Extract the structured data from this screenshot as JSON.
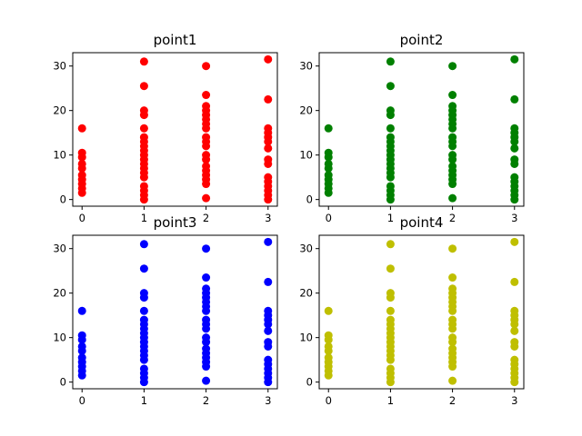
{
  "chart_data": [
    {
      "type": "scatter",
      "title": "point1",
      "color": "#ff0000",
      "xlabel": "",
      "ylabel": "",
      "xlim": [
        -0.15,
        3.15
      ],
      "ylim": [
        -1.5,
        33
      ],
      "x_ticks": [
        "0",
        "1",
        "2",
        "3"
      ],
      "y_ticks": [
        "0",
        "10",
        "20",
        "30"
      ],
      "grid": false,
      "points": [
        {
          "x": 0,
          "y": 1.5
        },
        {
          "x": 0,
          "y": 2.5
        },
        {
          "x": 0,
          "y": 3.5
        },
        {
          "x": 0,
          "y": 4.5
        },
        {
          "x": 0,
          "y": 5.5
        },
        {
          "x": 0,
          "y": 7
        },
        {
          "x": 0,
          "y": 8
        },
        {
          "x": 0,
          "y": 9.5
        },
        {
          "x": 0,
          "y": 10.5
        },
        {
          "x": 0,
          "y": 16
        },
        {
          "x": 1,
          "y": 0
        },
        {
          "x": 1,
          "y": 1
        },
        {
          "x": 1,
          "y": 2
        },
        {
          "x": 1,
          "y": 3
        },
        {
          "x": 1,
          "y": 5
        },
        {
          "x": 1,
          "y": 6
        },
        {
          "x": 1,
          "y": 7
        },
        {
          "x": 1,
          "y": 8
        },
        {
          "x": 1,
          "y": 9
        },
        {
          "x": 1,
          "y": 10
        },
        {
          "x": 1,
          "y": 11
        },
        {
          "x": 1,
          "y": 12
        },
        {
          "x": 1,
          "y": 13
        },
        {
          "x": 1,
          "y": 14
        },
        {
          "x": 1,
          "y": 16
        },
        {
          "x": 1,
          "y": 19
        },
        {
          "x": 1,
          "y": 20
        },
        {
          "x": 1,
          "y": 25.5
        },
        {
          "x": 1,
          "y": 31
        },
        {
          "x": 2,
          "y": 0.3
        },
        {
          "x": 2,
          "y": 3.5
        },
        {
          "x": 2,
          "y": 4.5
        },
        {
          "x": 2,
          "y": 5.5
        },
        {
          "x": 2,
          "y": 6.5
        },
        {
          "x": 2,
          "y": 7.5
        },
        {
          "x": 2,
          "y": 9
        },
        {
          "x": 2,
          "y": 10
        },
        {
          "x": 2,
          "y": 12
        },
        {
          "x": 2,
          "y": 13
        },
        {
          "x": 2,
          "y": 14
        },
        {
          "x": 2,
          "y": 16
        },
        {
          "x": 2,
          "y": 17
        },
        {
          "x": 2,
          "y": 18
        },
        {
          "x": 2,
          "y": 19
        },
        {
          "x": 2,
          "y": 20
        },
        {
          "x": 2,
          "y": 21
        },
        {
          "x": 2,
          "y": 23.5
        },
        {
          "x": 2,
          "y": 30
        },
        {
          "x": 3,
          "y": 0
        },
        {
          "x": 3,
          "y": 1
        },
        {
          "x": 3,
          "y": 2
        },
        {
          "x": 3,
          "y": 3
        },
        {
          "x": 3,
          "y": 4
        },
        {
          "x": 3,
          "y": 5
        },
        {
          "x": 3,
          "y": 8
        },
        {
          "x": 3,
          "y": 9
        },
        {
          "x": 3,
          "y": 11.5
        },
        {
          "x": 3,
          "y": 13
        },
        {
          "x": 3,
          "y": 14
        },
        {
          "x": 3,
          "y": 15
        },
        {
          "x": 3,
          "y": 16
        },
        {
          "x": 3,
          "y": 22.5
        },
        {
          "x": 3,
          "y": 31.5
        }
      ]
    },
    {
      "type": "scatter",
      "title": "point2",
      "color": "#008000",
      "xlabel": "",
      "ylabel": "",
      "xlim": [
        -0.15,
        3.15
      ],
      "ylim": [
        -1.5,
        33
      ],
      "x_ticks": [
        "0",
        "1",
        "2",
        "3"
      ],
      "y_ticks": [
        "0",
        "10",
        "20",
        "30"
      ],
      "grid": false,
      "points": [
        {
          "x": 0,
          "y": 1.5
        },
        {
          "x": 0,
          "y": 2.5
        },
        {
          "x": 0,
          "y": 3.5
        },
        {
          "x": 0,
          "y": 4.5
        },
        {
          "x": 0,
          "y": 5.5
        },
        {
          "x": 0,
          "y": 7
        },
        {
          "x": 0,
          "y": 8
        },
        {
          "x": 0,
          "y": 9.5
        },
        {
          "x": 0,
          "y": 10.5
        },
        {
          "x": 0,
          "y": 16
        },
        {
          "x": 1,
          "y": 0
        },
        {
          "x": 1,
          "y": 1
        },
        {
          "x": 1,
          "y": 2
        },
        {
          "x": 1,
          "y": 3
        },
        {
          "x": 1,
          "y": 5
        },
        {
          "x": 1,
          "y": 6
        },
        {
          "x": 1,
          "y": 7
        },
        {
          "x": 1,
          "y": 8
        },
        {
          "x": 1,
          "y": 9
        },
        {
          "x": 1,
          "y": 10
        },
        {
          "x": 1,
          "y": 11
        },
        {
          "x": 1,
          "y": 12
        },
        {
          "x": 1,
          "y": 13
        },
        {
          "x": 1,
          "y": 14
        },
        {
          "x": 1,
          "y": 16
        },
        {
          "x": 1,
          "y": 19
        },
        {
          "x": 1,
          "y": 20
        },
        {
          "x": 1,
          "y": 25.5
        },
        {
          "x": 1,
          "y": 31
        },
        {
          "x": 2,
          "y": 0.3
        },
        {
          "x": 2,
          "y": 3.5
        },
        {
          "x": 2,
          "y": 4.5
        },
        {
          "x": 2,
          "y": 5.5
        },
        {
          "x": 2,
          "y": 6.5
        },
        {
          "x": 2,
          "y": 7.5
        },
        {
          "x": 2,
          "y": 9
        },
        {
          "x": 2,
          "y": 10
        },
        {
          "x": 2,
          "y": 12
        },
        {
          "x": 2,
          "y": 13
        },
        {
          "x": 2,
          "y": 14
        },
        {
          "x": 2,
          "y": 16
        },
        {
          "x": 2,
          "y": 17
        },
        {
          "x": 2,
          "y": 18
        },
        {
          "x": 2,
          "y": 19
        },
        {
          "x": 2,
          "y": 20
        },
        {
          "x": 2,
          "y": 21
        },
        {
          "x": 2,
          "y": 23.5
        },
        {
          "x": 2,
          "y": 30
        },
        {
          "x": 3,
          "y": 0
        },
        {
          "x": 3,
          "y": 1
        },
        {
          "x": 3,
          "y": 2
        },
        {
          "x": 3,
          "y": 3
        },
        {
          "x": 3,
          "y": 4
        },
        {
          "x": 3,
          "y": 5
        },
        {
          "x": 3,
          "y": 8
        },
        {
          "x": 3,
          "y": 9
        },
        {
          "x": 3,
          "y": 11.5
        },
        {
          "x": 3,
          "y": 13
        },
        {
          "x": 3,
          "y": 14
        },
        {
          "x": 3,
          "y": 15
        },
        {
          "x": 3,
          "y": 16
        },
        {
          "x": 3,
          "y": 22.5
        },
        {
          "x": 3,
          "y": 31.5
        }
      ]
    },
    {
      "type": "scatter",
      "title": "point3",
      "color": "#0000ff",
      "xlabel": "",
      "ylabel": "",
      "xlim": [
        -0.15,
        3.15
      ],
      "ylim": [
        -1.5,
        33
      ],
      "x_ticks": [
        "0",
        "1",
        "2",
        "3"
      ],
      "y_ticks": [
        "0",
        "10",
        "20",
        "30"
      ],
      "grid": false,
      "points": [
        {
          "x": 0,
          "y": 1.5
        },
        {
          "x": 0,
          "y": 2.5
        },
        {
          "x": 0,
          "y": 3.5
        },
        {
          "x": 0,
          "y": 4.5
        },
        {
          "x": 0,
          "y": 5.5
        },
        {
          "x": 0,
          "y": 7
        },
        {
          "x": 0,
          "y": 8
        },
        {
          "x": 0,
          "y": 9.5
        },
        {
          "x": 0,
          "y": 10.5
        },
        {
          "x": 0,
          "y": 16
        },
        {
          "x": 1,
          "y": 0
        },
        {
          "x": 1,
          "y": 1
        },
        {
          "x": 1,
          "y": 2
        },
        {
          "x": 1,
          "y": 3
        },
        {
          "x": 1,
          "y": 5
        },
        {
          "x": 1,
          "y": 6
        },
        {
          "x": 1,
          "y": 7
        },
        {
          "x": 1,
          "y": 8
        },
        {
          "x": 1,
          "y": 9
        },
        {
          "x": 1,
          "y": 10
        },
        {
          "x": 1,
          "y": 11
        },
        {
          "x": 1,
          "y": 12
        },
        {
          "x": 1,
          "y": 13
        },
        {
          "x": 1,
          "y": 14
        },
        {
          "x": 1,
          "y": 16
        },
        {
          "x": 1,
          "y": 19
        },
        {
          "x": 1,
          "y": 20
        },
        {
          "x": 1,
          "y": 25.5
        },
        {
          "x": 1,
          "y": 31
        },
        {
          "x": 2,
          "y": 0.3
        },
        {
          "x": 2,
          "y": 3.5
        },
        {
          "x": 2,
          "y": 4.5
        },
        {
          "x": 2,
          "y": 5.5
        },
        {
          "x": 2,
          "y": 6.5
        },
        {
          "x": 2,
          "y": 7.5
        },
        {
          "x": 2,
          "y": 9
        },
        {
          "x": 2,
          "y": 10
        },
        {
          "x": 2,
          "y": 12
        },
        {
          "x": 2,
          "y": 13
        },
        {
          "x": 2,
          "y": 14
        },
        {
          "x": 2,
          "y": 16
        },
        {
          "x": 2,
          "y": 17
        },
        {
          "x": 2,
          "y": 18
        },
        {
          "x": 2,
          "y": 19
        },
        {
          "x": 2,
          "y": 20
        },
        {
          "x": 2,
          "y": 21
        },
        {
          "x": 2,
          "y": 23.5
        },
        {
          "x": 2,
          "y": 30
        },
        {
          "x": 3,
          "y": 0
        },
        {
          "x": 3,
          "y": 1
        },
        {
          "x": 3,
          "y": 2
        },
        {
          "x": 3,
          "y": 3
        },
        {
          "x": 3,
          "y": 4
        },
        {
          "x": 3,
          "y": 5
        },
        {
          "x": 3,
          "y": 8
        },
        {
          "x": 3,
          "y": 9
        },
        {
          "x": 3,
          "y": 11.5
        },
        {
          "x": 3,
          "y": 13
        },
        {
          "x": 3,
          "y": 14
        },
        {
          "x": 3,
          "y": 15
        },
        {
          "x": 3,
          "y": 16
        },
        {
          "x": 3,
          "y": 22.5
        },
        {
          "x": 3,
          "y": 31.5
        }
      ]
    },
    {
      "type": "scatter",
      "title": "point4",
      "color": "#bfbf00",
      "xlabel": "",
      "ylabel": "",
      "xlim": [
        -0.15,
        3.15
      ],
      "ylim": [
        -1.5,
        33
      ],
      "x_ticks": [
        "0",
        "1",
        "2",
        "3"
      ],
      "y_ticks": [
        "0",
        "10",
        "20",
        "30"
      ],
      "grid": false,
      "points": [
        {
          "x": 0,
          "y": 1.5
        },
        {
          "x": 0,
          "y": 2.5
        },
        {
          "x": 0,
          "y": 3.5
        },
        {
          "x": 0,
          "y": 4.5
        },
        {
          "x": 0,
          "y": 5.5
        },
        {
          "x": 0,
          "y": 7
        },
        {
          "x": 0,
          "y": 8
        },
        {
          "x": 0,
          "y": 9.5
        },
        {
          "x": 0,
          "y": 10.5
        },
        {
          "x": 0,
          "y": 16
        },
        {
          "x": 1,
          "y": 0
        },
        {
          "x": 1,
          "y": 1
        },
        {
          "x": 1,
          "y": 2
        },
        {
          "x": 1,
          "y": 3
        },
        {
          "x": 1,
          "y": 5
        },
        {
          "x": 1,
          "y": 6
        },
        {
          "x": 1,
          "y": 7
        },
        {
          "x": 1,
          "y": 8
        },
        {
          "x": 1,
          "y": 9
        },
        {
          "x": 1,
          "y": 10
        },
        {
          "x": 1,
          "y": 11
        },
        {
          "x": 1,
          "y": 12
        },
        {
          "x": 1,
          "y": 13
        },
        {
          "x": 1,
          "y": 14
        },
        {
          "x": 1,
          "y": 16
        },
        {
          "x": 1,
          "y": 19
        },
        {
          "x": 1,
          "y": 20
        },
        {
          "x": 1,
          "y": 25.5
        },
        {
          "x": 1,
          "y": 31
        },
        {
          "x": 2,
          "y": 0.3
        },
        {
          "x": 2,
          "y": 3.5
        },
        {
          "x": 2,
          "y": 4.5
        },
        {
          "x": 2,
          "y": 5.5
        },
        {
          "x": 2,
          "y": 6.5
        },
        {
          "x": 2,
          "y": 7.5
        },
        {
          "x": 2,
          "y": 9
        },
        {
          "x": 2,
          "y": 10
        },
        {
          "x": 2,
          "y": 12
        },
        {
          "x": 2,
          "y": 13
        },
        {
          "x": 2,
          "y": 14
        },
        {
          "x": 2,
          "y": 16
        },
        {
          "x": 2,
          "y": 17
        },
        {
          "x": 2,
          "y": 18
        },
        {
          "x": 2,
          "y": 19
        },
        {
          "x": 2,
          "y": 20
        },
        {
          "x": 2,
          "y": 21
        },
        {
          "x": 2,
          "y": 23.5
        },
        {
          "x": 2,
          "y": 30
        },
        {
          "x": 3,
          "y": 0
        },
        {
          "x": 3,
          "y": 1
        },
        {
          "x": 3,
          "y": 2
        },
        {
          "x": 3,
          "y": 3
        },
        {
          "x": 3,
          "y": 4
        },
        {
          "x": 3,
          "y": 5
        },
        {
          "x": 3,
          "y": 8
        },
        {
          "x": 3,
          "y": 9
        },
        {
          "x": 3,
          "y": 11.5
        },
        {
          "x": 3,
          "y": 13
        },
        {
          "x": 3,
          "y": 14
        },
        {
          "x": 3,
          "y": 15
        },
        {
          "x": 3,
          "y": 16
        },
        {
          "x": 3,
          "y": 22.5
        },
        {
          "x": 3,
          "y": 31.5
        }
      ]
    }
  ]
}
